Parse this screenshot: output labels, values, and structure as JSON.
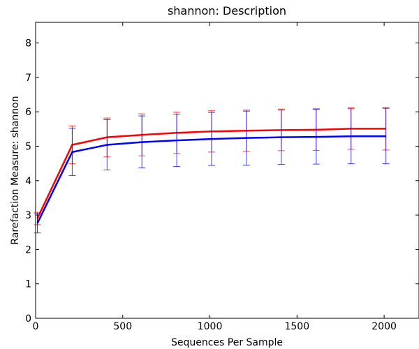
{
  "chart_data": {
    "type": "line",
    "title": "shannon: Description",
    "xlabel": "Sequences Per Sample",
    "ylabel": "Rarefaction Measure: shannon",
    "xlim": [
      0,
      2200
    ],
    "ylim": [
      0,
      8.6
    ],
    "xticks": [
      0,
      500,
      1000,
      1500,
      2000
    ],
    "yticks": [
      0,
      1,
      2,
      3,
      4,
      5,
      6,
      7,
      8
    ],
    "grid": false,
    "legend": "none",
    "series": [
      {
        "color": "#ff0000",
        "x": [
          10,
          210,
          410,
          610,
          810,
          1010,
          1210,
          1410,
          1610,
          1810,
          2010
        ],
        "y": [
          2.9,
          5.04,
          5.26,
          5.33,
          5.39,
          5.43,
          5.45,
          5.47,
          5.48,
          5.51,
          5.51
        ],
        "err_low": [
          2.72,
          4.49,
          4.69,
          4.72,
          4.79,
          4.83,
          4.85,
          4.87,
          4.88,
          4.91,
          4.89
        ],
        "err_high": [
          3.08,
          5.59,
          5.82,
          5.94,
          5.99,
          6.03,
          6.05,
          6.08,
          6.09,
          6.12,
          6.13
        ]
      },
      {
        "color": "#0000ff",
        "x": [
          10,
          210,
          410,
          610,
          810,
          1010,
          1210,
          1410,
          1610,
          1810,
          2010
        ],
        "y": [
          2.76,
          4.83,
          5.04,
          5.12,
          5.17,
          5.21,
          5.24,
          5.26,
          5.27,
          5.29,
          5.29
        ],
        "err_low": [
          2.48,
          4.15,
          4.31,
          4.37,
          4.41,
          4.44,
          4.45,
          4.47,
          4.48,
          4.49,
          4.49
        ],
        "err_high": [
          3.04,
          5.52,
          5.77,
          5.88,
          5.93,
          5.98,
          6.02,
          6.05,
          6.07,
          6.09,
          6.1
        ]
      }
    ]
  }
}
